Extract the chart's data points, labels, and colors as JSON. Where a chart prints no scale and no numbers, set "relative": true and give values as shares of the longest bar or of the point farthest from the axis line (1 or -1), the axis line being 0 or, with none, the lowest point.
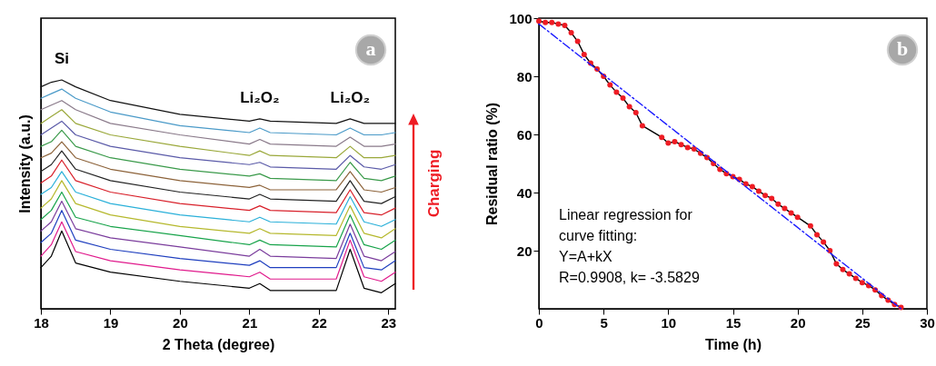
{
  "chart_data": [
    {
      "type": "line",
      "relative": true,
      "xlabel": "2 Theta (degree)",
      "ylabel": "Intensity (a.u.)",
      "xlim": [
        18,
        23.1
      ],
      "xticks": [
        18,
        19,
        20,
        21,
        22,
        23
      ],
      "x": [
        18.0,
        18.15,
        18.3,
        18.5,
        19,
        20,
        21,
        21.15,
        21.3,
        22.25,
        22.45,
        22.65,
        22.9,
        23.1
      ],
      "series": [
        {
          "color": "#000000",
          "values": [
            0.18,
            0.23,
            0.34,
            0.2,
            0.16,
            0.12,
            0.09,
            0.11,
            0.08,
            0.08,
            0.26,
            0.09,
            0.07,
            0.11
          ]
        },
        {
          "color": "#e01a8c",
          "values": [
            0.23,
            0.28,
            0.38,
            0.25,
            0.21,
            0.17,
            0.14,
            0.16,
            0.13,
            0.13,
            0.3,
            0.14,
            0.12,
            0.16
          ]
        },
        {
          "color": "#1f3fbf",
          "values": [
            0.29,
            0.33,
            0.43,
            0.3,
            0.26,
            0.22,
            0.19,
            0.21,
            0.18,
            0.18,
            0.33,
            0.18,
            0.17,
            0.21
          ]
        },
        {
          "color": "#7a3c9c",
          "values": [
            0.34,
            0.38,
            0.47,
            0.35,
            0.31,
            0.27,
            0.23,
            0.26,
            0.23,
            0.22,
            0.37,
            0.23,
            0.21,
            0.25
          ]
        },
        {
          "color": "#17a34a",
          "values": [
            0.39,
            0.43,
            0.51,
            0.4,
            0.36,
            0.32,
            0.28,
            0.3,
            0.28,
            0.27,
            0.41,
            0.28,
            0.26,
            0.3
          ]
        },
        {
          "color": "#b5b82c",
          "values": [
            0.44,
            0.48,
            0.56,
            0.46,
            0.41,
            0.36,
            0.33,
            0.35,
            0.33,
            0.32,
            0.45,
            0.33,
            0.31,
            0.35
          ]
        },
        {
          "color": "#2ab0d9",
          "values": [
            0.5,
            0.53,
            0.6,
            0.51,
            0.46,
            0.41,
            0.38,
            0.4,
            0.38,
            0.37,
            0.49,
            0.38,
            0.36,
            0.39
          ]
        },
        {
          "color": "#d8202a",
          "values": [
            0.55,
            0.58,
            0.65,
            0.56,
            0.51,
            0.46,
            0.43,
            0.45,
            0.43,
            0.42,
            0.52,
            0.42,
            0.41,
            0.44
          ]
        },
        {
          "color": "#222222",
          "values": [
            0.6,
            0.63,
            0.69,
            0.61,
            0.56,
            0.51,
            0.48,
            0.5,
            0.48,
            0.47,
            0.56,
            0.47,
            0.46,
            0.49
          ]
        },
        {
          "color": "#8c6239",
          "values": [
            0.66,
            0.68,
            0.73,
            0.66,
            0.61,
            0.56,
            0.53,
            0.54,
            0.52,
            0.52,
            0.6,
            0.52,
            0.51,
            0.53
          ]
        },
        {
          "color": "#3a9a4a",
          "values": [
            0.71,
            0.73,
            0.78,
            0.71,
            0.66,
            0.61,
            0.58,
            0.59,
            0.57,
            0.56,
            0.64,
            0.57,
            0.56,
            0.58
          ]
        },
        {
          "color": "#5a5aa8",
          "values": [
            0.76,
            0.79,
            0.82,
            0.76,
            0.71,
            0.66,
            0.63,
            0.64,
            0.62,
            0.61,
            0.67,
            0.62,
            0.61,
            0.63
          ]
        },
        {
          "color": "#9aa83a",
          "values": [
            0.81,
            0.84,
            0.87,
            0.81,
            0.76,
            0.71,
            0.67,
            0.69,
            0.67,
            0.66,
            0.71,
            0.66,
            0.66,
            0.67
          ]
        },
        {
          "color": "#8a7a8a",
          "values": [
            0.87,
            0.89,
            0.91,
            0.87,
            0.81,
            0.76,
            0.72,
            0.74,
            0.72,
            0.71,
            0.75,
            0.71,
            0.71,
            0.72
          ]
        },
        {
          "color": "#4a9ac8",
          "values": [
            0.92,
            0.94,
            0.96,
            0.92,
            0.86,
            0.8,
            0.77,
            0.79,
            0.77,
            0.76,
            0.79,
            0.76,
            0.76,
            0.77
          ]
        },
        {
          "color": "#111111",
          "values": [
            0.97,
            0.99,
            1.0,
            0.97,
            0.91,
            0.85,
            0.82,
            0.83,
            0.82,
            0.81,
            0.83,
            0.81,
            0.81,
            0.81
          ]
        }
      ],
      "annotations": [
        {
          "text": "Si",
          "x": 18.3,
          "y": 1.0
        },
        {
          "text": "Li₂O₂",
          "x": 21.15,
          "y": 0.83
        },
        {
          "text": "Li₂O₂",
          "x": 22.45,
          "y": 0.83
        },
        "Charging",
        "a"
      ]
    },
    {
      "type": "line",
      "xlabel": "Time (h)",
      "ylabel": "Residual ratio (%)",
      "xlim": [
        0,
        30
      ],
      "xticks": [
        0,
        5,
        10,
        15,
        20,
        25,
        30
      ],
      "ylim": [
        0,
        100
      ],
      "yticks": [
        20,
        40,
        60,
        80,
        100
      ],
      "x": [
        0,
        0.5,
        1,
        1.5,
        2,
        2.5,
        3,
        3.5,
        4,
        4.5,
        5,
        5.5,
        6,
        6.5,
        7,
        7.5,
        8,
        9.5,
        10,
        10.5,
        11,
        11.5,
        12,
        12.5,
        13,
        13.5,
        14,
        14.5,
        15,
        15.5,
        16,
        16.5,
        17,
        17.5,
        18,
        18.5,
        19,
        19.5,
        20,
        21,
        21.5,
        22,
        22.5,
        23,
        23.5,
        24,
        24.5,
        25,
        25.5,
        26,
        26.5,
        27,
        27.5,
        28
      ],
      "series": [
        {
          "color": "#000000",
          "values": [
            99,
            98.5,
            98.5,
            98,
            97.5,
            95,
            92,
            87.5,
            84.5,
            82.5,
            80,
            77,
            74.5,
            72.5,
            69.5,
            67.5,
            63,
            59,
            57,
            57.5,
            56.5,
            55.5,
            55,
            53.5,
            52,
            50,
            48,
            46.5,
            45.5,
            44.5,
            43,
            42,
            40.5,
            39,
            38,
            36,
            34.5,
            33,
            31.5,
            28.5,
            25.5,
            23,
            20,
            15.5,
            13.5,
            12,
            10.5,
            9,
            8,
            6.5,
            4.5,
            3,
            1.5,
            0.5
          ]
        },
        {
          "type": "scatter",
          "color": "#ee1c24",
          "marker": "circle",
          "values": [
            99,
            98.5,
            98.5,
            98,
            97.5,
            95,
            92,
            87.5,
            84.5,
            82.5,
            80,
            77,
            74.5,
            72.5,
            69.5,
            67.5,
            63,
            59,
            57,
            57.5,
            56.5,
            55.5,
            55,
            53.5,
            52,
            50,
            48,
            46.5,
            45.5,
            44.5,
            43,
            42,
            40.5,
            39,
            38,
            36,
            34.5,
            33,
            31.5,
            28.5,
            25.5,
            23,
            20,
            15.5,
            13.5,
            12,
            10.5,
            9,
            8,
            6.5,
            4.5,
            3,
            1.5,
            0.5
          ]
        },
        {
          "type": "line",
          "color": "#1a1aff",
          "line_style": "dashed",
          "x": [
            0,
            28
          ],
          "values": [
            98,
            0
          ]
        }
      ],
      "annotations": [
        "Linear regression for",
        "curve fitting:",
        "Y=A+kX",
        "R=0.9908, k= -3.5829",
        "b"
      ]
    }
  ]
}
